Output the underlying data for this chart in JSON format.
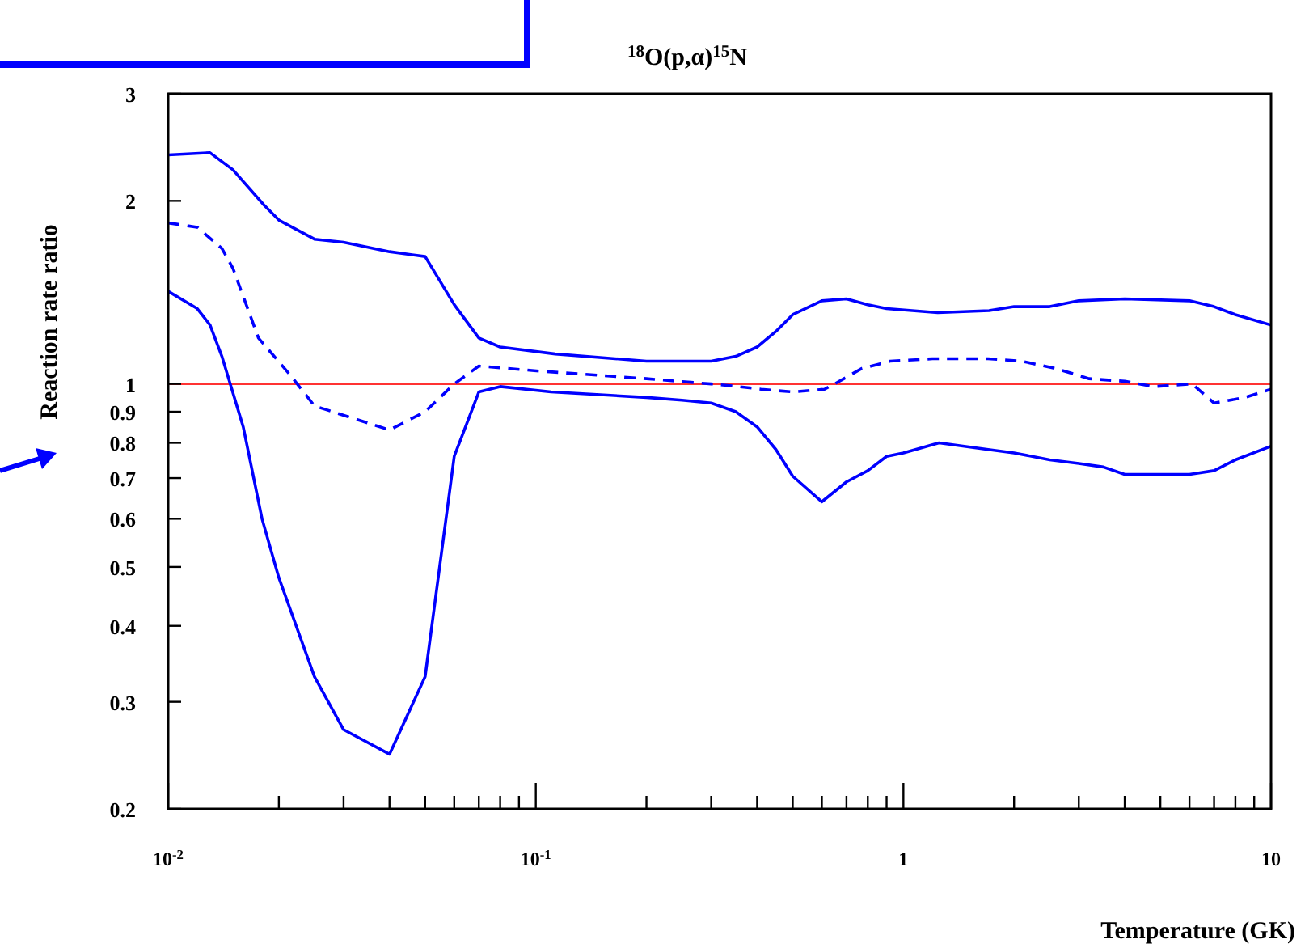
{
  "chart_data": {
    "type": "line",
    "title": "$^{18}$O(p,α)$^{15}$N",
    "xlabel": "Temperature (GK)",
    "ylabel": "Reaction rate ratio",
    "log": "xy",
    "xlim": [
      0.01,
      10
    ],
    "ylim": [
      0.2,
      3
    ],
    "xticks": [
      {
        "value": 0.01,
        "label": "10$^{-2}$"
      },
      {
        "value": 0.02,
        "label": null
      },
      {
        "value": 0.03,
        "label": null
      },
      {
        "value": 0.04,
        "label": null
      },
      {
        "value": 0.05,
        "label": null
      },
      {
        "value": 0.06,
        "label": null
      },
      {
        "value": 0.07,
        "label": null
      },
      {
        "value": 0.08,
        "label": null
      },
      {
        "value": 0.09,
        "label": null
      },
      {
        "value": 0.1,
        "label": "10$^{-1}$"
      },
      {
        "value": 0.2,
        "label": null
      },
      {
        "value": 0.3,
        "label": null
      },
      {
        "value": 0.4,
        "label": null
      },
      {
        "value": 0.5,
        "label": null
      },
      {
        "value": 0.6,
        "label": null
      },
      {
        "value": 0.7,
        "label": null
      },
      {
        "value": 0.8,
        "label": null
      },
      {
        "value": 0.9,
        "label": null
      },
      1,
      {
        "value": 2,
        "label": null
      },
      {
        "value": 3,
        "label": null
      },
      {
        "value": 4,
        "label": null
      },
      {
        "value": 5,
        "label": null
      },
      {
        "value": 6,
        "label": null
      },
      {
        "value": 7,
        "label": null
      },
      {
        "value": 8,
        "label": null
      },
      {
        "value": 9,
        "label": null
      },
      10
    ],
    "yticks": [
      0.2,
      0.3,
      0.4,
      0.5,
      0.6,
      0.7,
      0.8,
      0.9,
      1,
      2,
      3
    ],
    "ref_lines": [
      {
        "axis": "y",
        "value": 1,
        "color": "#ff3333"
      }
    ],
    "series": [
      {
        "color": "#0000ff",
        "line_style": "solid",
        "x": [
          0.01,
          0.013,
          0.015,
          0.0182,
          0.02,
          0.025,
          0.03,
          0.04,
          0.05,
          0.06,
          0.07,
          0.08,
          0.113,
          0.2,
          0.3,
          0.35,
          0.4,
          0.45,
          0.5,
          0.6,
          0.7,
          0.8,
          0.9,
          1.24,
          1.71,
          2,
          2.5,
          3,
          4,
          6,
          7,
          8,
          10
        ],
        "values": [
          2.38,
          2.4,
          2.25,
          1.97,
          1.86,
          1.73,
          1.71,
          1.65,
          1.62,
          1.35,
          1.19,
          1.15,
          1.12,
          1.09,
          1.09,
          1.11,
          1.15,
          1.22,
          1.3,
          1.37,
          1.38,
          1.35,
          1.33,
          1.31,
          1.32,
          1.34,
          1.34,
          1.37,
          1.38,
          1.37,
          1.34,
          1.3,
          1.25
        ]
      },
      {
        "color": "#0000ff",
        "line_style": "dashed",
        "x": [
          0.01,
          0.012,
          0.014,
          0.015,
          0.0176,
          0.0216,
          0.025,
          0.04,
          0.05,
          0.06,
          0.07,
          0.102,
          0.2,
          0.3,
          0.356,
          0.41,
          0.5,
          0.61,
          0.65,
          0.77,
          0.92,
          1.2,
          1.7,
          2.1,
          2.6,
          3.2,
          4,
          4.8,
          6.1,
          7,
          8.5,
          10
        ],
        "values": [
          1.84,
          1.81,
          1.67,
          1.55,
          1.19,
          1.03,
          0.92,
          0.84,
          0.9,
          1,
          1.07,
          1.05,
          1.02,
          1,
          0.99,
          0.98,
          0.97,
          0.98,
          1,
          1.06,
          1.09,
          1.1,
          1.1,
          1.09,
          1.06,
          1.02,
          1.01,
          0.99,
          1,
          0.93,
          0.95,
          0.98
        ]
      },
      {
        "color": "#0000ff",
        "line_style": "solid",
        "x": [
          0.01,
          0.012,
          0.013,
          0.014,
          0.016,
          0.018,
          0.02,
          0.025,
          0.03,
          0.04,
          0.05,
          0.06,
          0.07,
          0.08,
          0.11,
          0.2,
          0.25,
          0.3,
          0.35,
          0.4,
          0.45,
          0.5,
          0.6,
          0.7,
          0.8,
          0.9,
          1,
          1.25,
          1.7,
          2,
          2.5,
          3,
          3.5,
          4,
          6,
          7,
          8,
          10
        ],
        "values": [
          1.42,
          1.33,
          1.25,
          1.11,
          0.85,
          0.6,
          0.48,
          0.33,
          0.27,
          0.246,
          0.33,
          0.76,
          0.97,
          0.99,
          0.97,
          0.95,
          0.94,
          0.93,
          0.9,
          0.85,
          0.78,
          0.705,
          0.64,
          0.69,
          0.72,
          0.76,
          0.77,
          0.8,
          0.78,
          0.77,
          0.75,
          0.74,
          0.73,
          0.71,
          0.71,
          0.72,
          0.75,
          0.79
        ]
      }
    ]
  }
}
